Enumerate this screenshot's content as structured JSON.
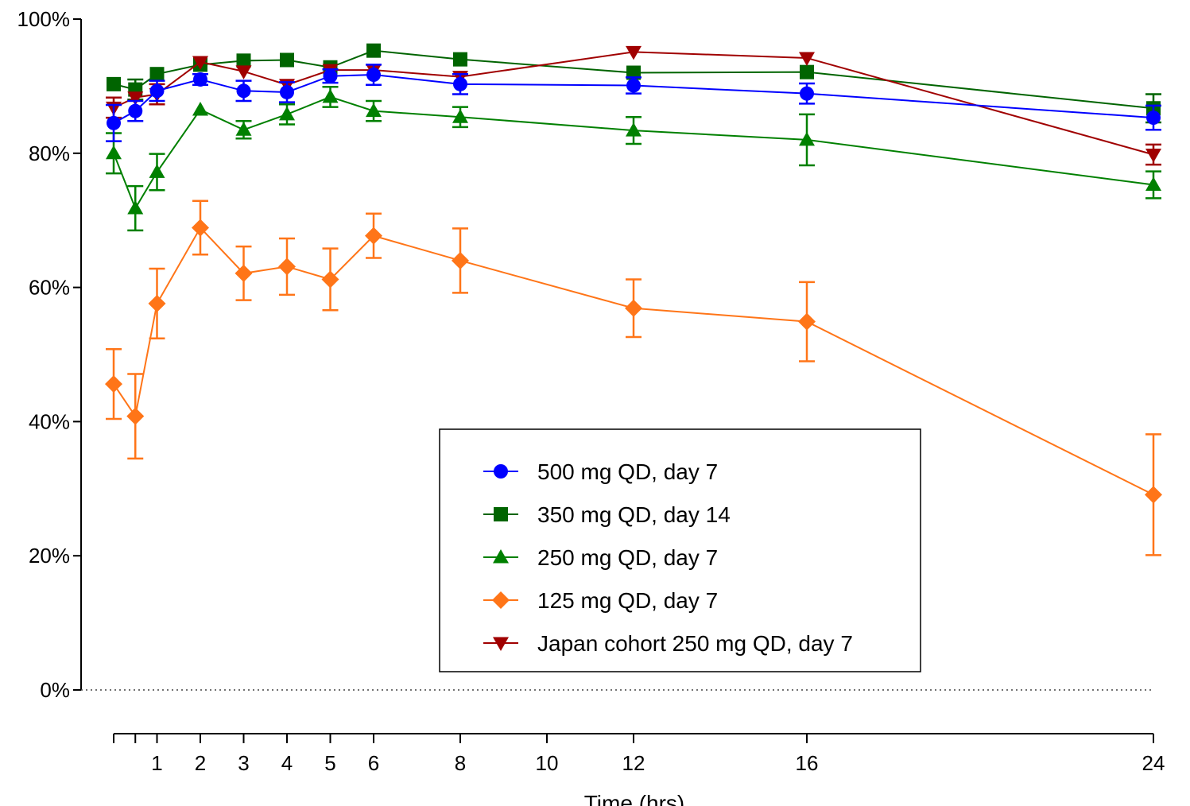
{
  "chart_data": {
    "type": "line",
    "title": "",
    "xlabel": "Time (hrs)",
    "ylabel": "",
    "x_ticks": [
      1,
      2,
      3,
      4,
      5,
      6,
      8,
      10,
      12,
      16,
      24
    ],
    "x_tick_labels": [
      "1",
      "2",
      "3",
      "4",
      "5",
      "6",
      "8",
      "10",
      "12",
      "16",
      "24"
    ],
    "x_minor_ticks": [
      0,
      0.5
    ],
    "xlim": [
      0,
      24
    ],
    "ylim": [
      0,
      100
    ],
    "y_ticks": [
      0,
      20,
      40,
      60,
      80,
      100
    ],
    "y_tick_labels": [
      "0%",
      "20%",
      "40%",
      "60%",
      "80%",
      "100%"
    ],
    "zero_line": "dotted",
    "legend_position": "center-right",
    "series": [
      {
        "name": "500 mg QD, day 7",
        "marker": "circle",
        "color": "#0000ff",
        "x": [
          0,
          0.5,
          1,
          2,
          3,
          4,
          5,
          6,
          8,
          12,
          16,
          24
        ],
        "y": [
          84.5,
          86.3,
          89.3,
          91.0,
          89.3,
          89.1,
          91.5,
          91.7,
          90.3,
          90.1,
          88.9,
          85.3
        ],
        "err": [
          2.7,
          1.5,
          1.5,
          0.8,
          1.5,
          1.5,
          1.0,
          1.5,
          1.5,
          1.2,
          1.5,
          1.8
        ]
      },
      {
        "name": "350 mg QD, day 14",
        "marker": "square",
        "color": "#006400",
        "x": [
          0,
          0.5,
          1,
          2,
          3,
          4,
          5,
          6,
          8,
          12,
          16,
          24
        ],
        "y": [
          90.3,
          89.5,
          91.8,
          93.2,
          93.8,
          93.9,
          92.8,
          95.3,
          94.0,
          92.0,
          92.1,
          86.7
        ],
        "err": [
          0,
          1.5,
          0,
          0,
          0,
          0,
          0,
          0,
          0,
          0,
          0,
          2.1
        ]
      },
      {
        "name": "250 mg QD, day 7",
        "marker": "triangle-up",
        "color": "#008000",
        "x": [
          0,
          0.5,
          1,
          2,
          3,
          4,
          5,
          6,
          8,
          12,
          16,
          24
        ],
        "y": [
          80.0,
          71.8,
          77.2,
          86.5,
          83.5,
          85.8,
          88.4,
          86.3,
          85.4,
          83.4,
          82.0,
          75.3
        ],
        "err": [
          3.0,
          3.3,
          2.7,
          0,
          1.3,
          1.5,
          1.5,
          1.5,
          1.5,
          2.0,
          3.8,
          2.0
        ]
      },
      {
        "name": "125 mg QD, day 7",
        "marker": "diamond",
        "color": "#ff7518",
        "x": [
          0,
          0.5,
          1,
          2,
          3,
          4,
          5,
          6,
          8,
          12,
          16,
          24
        ],
        "y": [
          45.6,
          40.8,
          57.6,
          68.9,
          62.1,
          63.1,
          61.2,
          67.7,
          64.0,
          56.9,
          54.9,
          29.1
        ],
        "err": [
          5.2,
          6.3,
          5.2,
          4.0,
          4.0,
          4.2,
          4.6,
          3.3,
          4.8,
          4.3,
          5.9,
          9.0
        ]
      },
      {
        "name": "Japan cohort 250 mg QD, day 7",
        "marker": "triangle-down",
        "color": "#a00000",
        "x": [
          0,
          0.5,
          1,
          2,
          3,
          4,
          5,
          6,
          8,
          12,
          16,
          24
        ],
        "y": [
          86.8,
          88.3,
          88.8,
          93.6,
          92.2,
          90.2,
          92.4,
          92.4,
          91.4,
          95.1,
          94.2,
          79.8
        ],
        "err": [
          1.5,
          0,
          1.5,
          0,
          0,
          0,
          0,
          0,
          0,
          0,
          0,
          1.5
        ]
      }
    ]
  }
}
